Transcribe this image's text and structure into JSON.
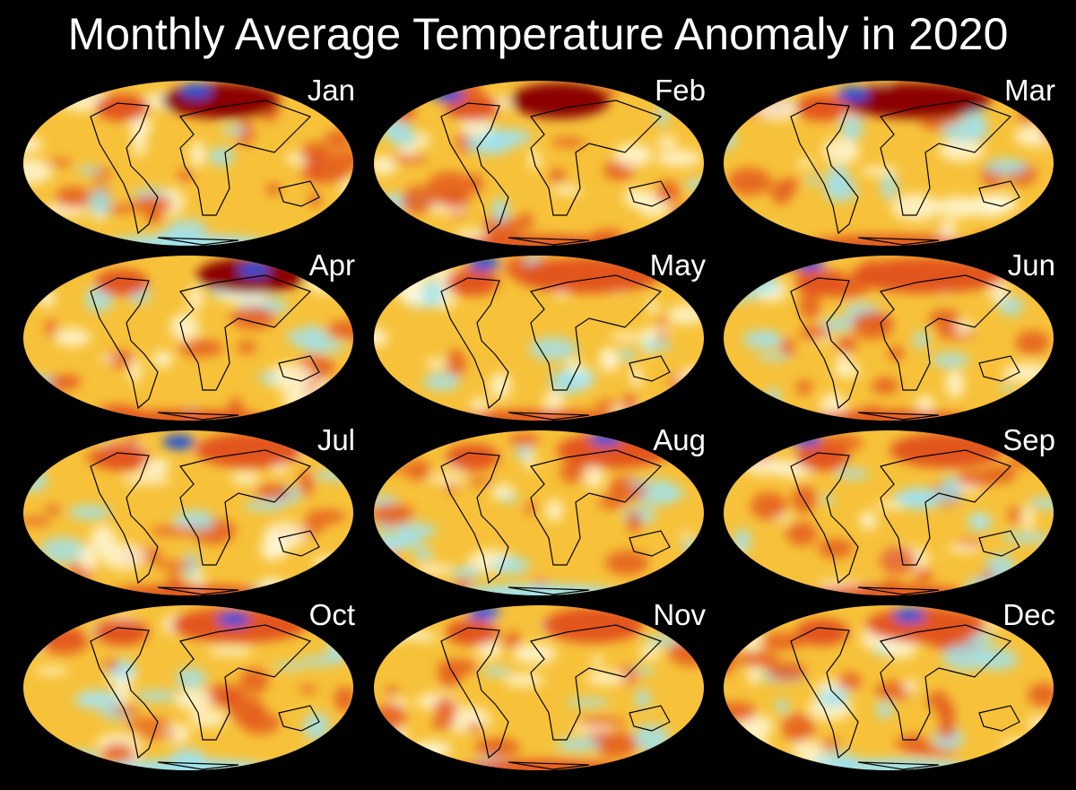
{
  "title": "Monthly Average Temperature Anomaly in 2020",
  "months": [
    "Jan",
    "Feb",
    "Mar",
    "Apr",
    "May",
    "Jun",
    "Jul",
    "Aug",
    "Sep",
    "Oct",
    "Nov",
    "Dec"
  ],
  "projection": "Mollweide",
  "colors": {
    "background": "#000000",
    "base": "#f7c23a",
    "warm": "#e2541b",
    "hot": "#8b0000",
    "neutral": "#fffbe0",
    "cool": "#9de4f5",
    "cold": "#1d4fd8",
    "coastline": "#000000"
  }
}
